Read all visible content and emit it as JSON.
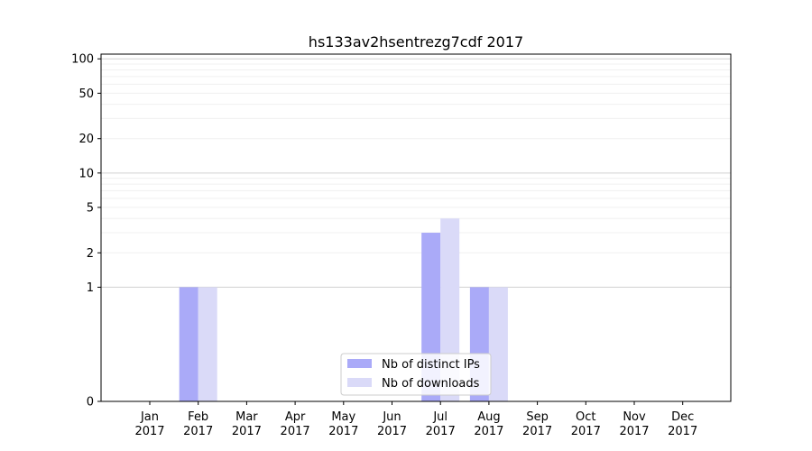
{
  "chart_data": {
    "type": "bar",
    "title": "hs133av2hsentrezg7cdf 2017",
    "xlabel": "",
    "ylabel": "",
    "y_scale": "symlog",
    "y_ticks": [
      0,
      1,
      2,
      5,
      10,
      20,
      50,
      100
    ],
    "y_tick_labels": [
      "0",
      "1",
      "2",
      "5",
      "10",
      "20",
      "50",
      "100"
    ],
    "ylim": [
      0,
      110
    ],
    "grid": true,
    "legend_position": "lower-center",
    "categories": [
      [
        "Jan",
        "2017"
      ],
      [
        "Feb",
        "2017"
      ],
      [
        "Mar",
        "2017"
      ],
      [
        "Apr",
        "2017"
      ],
      [
        "May",
        "2017"
      ],
      [
        "Jun",
        "2017"
      ],
      [
        "Jul",
        "2017"
      ],
      [
        "Aug",
        "2017"
      ],
      [
        "Sep",
        "2017"
      ],
      [
        "Oct",
        "2017"
      ],
      [
        "Nov",
        "2017"
      ],
      [
        "Dec",
        "2017"
      ]
    ],
    "series": [
      {
        "name": "Nb of distinct IPs",
        "color": "#aaaaf8",
        "values": [
          0,
          1,
          0,
          0,
          0,
          0,
          3,
          1,
          0,
          0,
          0,
          0
        ]
      },
      {
        "name": "Nb of downloads",
        "color": "#dadaf8",
        "values": [
          0,
          1,
          0,
          0,
          0,
          0,
          4,
          1,
          0,
          0,
          0,
          0
        ]
      }
    ]
  }
}
